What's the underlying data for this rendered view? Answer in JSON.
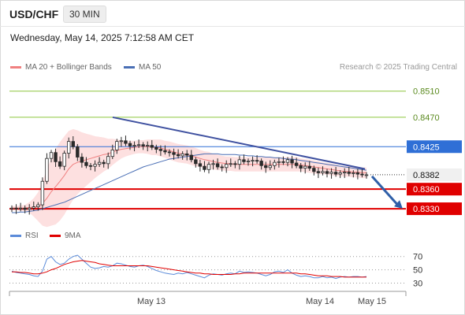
{
  "header": {
    "symbol": "USD/CHF",
    "timeframe": "30 MIN",
    "datetime": "Wednesday, May 14, 2025 7:12:58 AM CET"
  },
  "legend": {
    "ma20": "MA 20 + Bollinger Bands",
    "ma50": "MA 50",
    "credit": "Research © 2025 Trading Central"
  },
  "rsi_legend": {
    "rsi": "RSI",
    "ma9": "9MA"
  },
  "colors": {
    "green": "#8dc63f",
    "blue": "#2f6fd6",
    "red": "#e00000",
    "ma20": "#f08080",
    "ma50": "#4a6fb5",
    "band": "#fde0e0",
    "candle_up": "#2a2a2a",
    "candle_down": "#2a2a2a",
    "trend": "#3f51a0",
    "arrow": "#2f5fa8",
    "rsi": "#5b8bd9",
    "rsi_ma": "#e00000"
  },
  "chart_data": {
    "type": "candlestick",
    "x_labels": [
      "May 13",
      "May 14",
      "May 15"
    ],
    "levels": [
      {
        "value": 0.851,
        "label": "0.8510",
        "style": "green"
      },
      {
        "value": 0.847,
        "label": "0.8470",
        "style": "green"
      },
      {
        "value": 0.8425,
        "label": "0.8425",
        "style": "blue"
      },
      {
        "value": 0.8382,
        "label": "0.8382",
        "style": "current"
      },
      {
        "value": 0.836,
        "label": "0.8360",
        "style": "red"
      },
      {
        "value": 0.833,
        "label": "0.8330",
        "style": "red"
      }
    ],
    "ylim": [
      0.8312,
      0.8535
    ],
    "close_path": [
      0.8331,
      0.833,
      0.8331,
      0.8329,
      0.8331,
      0.8333,
      0.8336,
      0.8372,
      0.8407,
      0.8416,
      0.8402,
      0.8395,
      0.8415,
      0.8433,
      0.8425,
      0.8409,
      0.8401,
      0.8396,
      0.8395,
      0.8398,
      0.8401,
      0.8399,
      0.841,
      0.842,
      0.8433,
      0.8434,
      0.843,
      0.8426,
      0.8427,
      0.8428,
      0.8426,
      0.8427,
      0.8424,
      0.8421,
      0.8419,
      0.8417,
      0.8416,
      0.8413,
      0.8411,
      0.8414,
      0.8412,
      0.8405,
      0.8399,
      0.8395,
      0.839,
      0.8398,
      0.8399,
      0.8394,
      0.8393,
      0.8398,
      0.8399,
      0.8398,
      0.8405,
      0.8402,
      0.8403,
      0.8404,
      0.8403,
      0.8396,
      0.8393,
      0.8396,
      0.8401,
      0.8402,
      0.8401,
      0.8405,
      0.84,
      0.8396,
      0.8392,
      0.8395,
      0.8392,
      0.8387,
      0.8385,
      0.8387,
      0.8384,
      0.8386,
      0.8383,
      0.8385,
      0.8386,
      0.8384,
      0.8385,
      0.8383,
      0.8382,
      0.8382
    ],
    "ma20": [
      0.8331,
      0.8331,
      0.8331,
      0.8331,
      0.8332,
      0.8332,
      0.8333,
      0.8338,
      0.8346,
      0.8356,
      0.8364,
      0.8372,
      0.8381,
      0.8391,
      0.8398,
      0.8401,
      0.8403,
      0.8405,
      0.8407,
      0.8409,
      0.8411,
      0.8413,
      0.8414,
      0.8417,
      0.8419,
      0.8421,
      0.8422,
      0.8423,
      0.8424,
      0.8425,
      0.8425,
      0.8425,
      0.8424,
      0.8424,
      0.8423,
      0.8421,
      0.8419,
      0.8417,
      0.8415,
      0.8414,
      0.8413,
      0.8411,
      0.8409,
      0.8407,
      0.8405,
      0.8404,
      0.8402,
      0.8401,
      0.84,
      0.8399,
      0.8399,
      0.8398,
      0.8398,
      0.8398,
      0.8398,
      0.8398,
      0.8398,
      0.8398,
      0.8398,
      0.8398,
      0.8398,
      0.8398,
      0.8398,
      0.8398,
      0.8398,
      0.8398,
      0.8397,
      0.8396,
      0.8395,
      0.8394,
      0.8393,
      0.8392,
      0.8391,
      0.839,
      0.8389,
      0.8388,
      0.8387,
      0.8387,
      0.8386,
      0.8386,
      0.8385,
      0.8385
    ],
    "ma50": [
      0.8324,
      0.8324,
      0.8325,
      0.8325,
      0.8326,
      0.8327,
      0.8328,
      0.833,
      0.8332,
      0.8334,
      0.8336,
      0.8338,
      0.834,
      0.8343,
      0.8346,
      0.8349,
      0.8352,
      0.8355,
      0.8358,
      0.8361,
      0.8364,
      0.8367,
      0.837,
      0.8373,
      0.8376,
      0.8379,
      0.8382,
      0.8385,
      0.8388,
      0.8391,
      0.8394,
      0.8396,
      0.8398,
      0.84,
      0.8402,
      0.8404,
      0.8406,
      0.8407,
      0.8408,
      0.8409,
      0.841,
      0.8411,
      0.8412,
      0.8413,
      0.8414,
      0.8414,
      0.8414,
      0.8414,
      0.8413,
      0.8413,
      0.8413,
      0.8413,
      0.8412,
      0.8412,
      0.8411,
      0.8411,
      0.841,
      0.841,
      0.8409,
      0.8409,
      0.8408,
      0.8408,
      0.8407,
      0.8406,
      0.8406,
      0.8405,
      0.8404,
      0.8403,
      0.8402,
      0.8401,
      0.84,
      0.8399,
      0.8398,
      0.8397,
      0.8396,
      0.8395,
      0.8394,
      0.8393,
      0.8392,
      0.8391,
      0.839,
      0.8389
    ],
    "band_width": [
      0.0003,
      0.0003,
      0.0004,
      0.0005,
      0.0008,
      0.0014,
      0.0022,
      0.0034,
      0.0044,
      0.0052,
      0.0058,
      0.006,
      0.006,
      0.0058,
      0.0054,
      0.0049,
      0.0044,
      0.004,
      0.0036,
      0.0032,
      0.0029,
      0.0026,
      0.0023,
      0.002,
      0.0017,
      0.0014,
      0.0012,
      0.0011,
      0.001,
      0.001,
      0.001,
      0.0011,
      0.0012,
      0.0012,
      0.0013,
      0.0013,
      0.0014,
      0.0014,
      0.0014,
      0.0014,
      0.0014,
      0.0014,
      0.0014,
      0.0013,
      0.0013,
      0.0013,
      0.0012,
      0.0012,
      0.0011,
      0.0011,
      0.0011,
      0.0011,
      0.0011,
      0.0011,
      0.0011,
      0.0011,
      0.0011,
      0.0011,
      0.0011,
      0.0011,
      0.0011,
      0.0011,
      0.0011,
      0.0011,
      0.0011,
      0.0011,
      0.001,
      0.001,
      0.001,
      0.001,
      0.001,
      0.0009,
      0.0009,
      0.0009,
      0.0009,
      0.0008,
      0.0008,
      0.0008,
      0.0008,
      0.0008,
      0.0008,
      0.0008
    ],
    "trendline": {
      "from": [
        0.847,
        0.8391
      ],
      "note": "descending resistance"
    },
    "rsi": {
      "levels": [
        70,
        50,
        30
      ],
      "ylim": [
        20,
        85
      ],
      "rsi": [
        48,
        46,
        45,
        44,
        43,
        41,
        40,
        48,
        66,
        70,
        62,
        58,
        60,
        66,
        70,
        72,
        66,
        60,
        54,
        52,
        53,
        55,
        54,
        56,
        60,
        59,
        57,
        55,
        54,
        56,
        57,
        55,
        52,
        49,
        47,
        45,
        44,
        43,
        45,
        44,
        46,
        44,
        42,
        40,
        38,
        42,
        44,
        43,
        42,
        44,
        45,
        44,
        48,
        46,
        47,
        46,
        45,
        43,
        41,
        43,
        47,
        48,
        46,
        50,
        45,
        42,
        40,
        41,
        40,
        38,
        38,
        40,
        38,
        39,
        37,
        39,
        40,
        39,
        40,
        40,
        39,
        40
      ],
      "ma9": [
        47,
        47,
        46,
        46,
        45,
        44,
        44,
        45,
        47,
        50,
        52,
        55,
        58,
        60,
        62,
        63,
        64,
        63,
        62,
        61,
        59,
        58,
        57,
        56,
        56,
        56,
        56,
        56,
        56,
        56,
        56,
        56,
        55,
        54,
        53,
        52,
        51,
        50,
        49,
        48,
        47,
        46,
        45,
        45,
        44,
        44,
        43,
        43,
        43,
        43,
        43,
        44,
        44,
        45,
        45,
        45,
        45,
        45,
        45,
        45,
        45,
        45,
        45,
        45,
        45,
        45,
        44,
        44,
        43,
        42,
        41,
        41,
        41,
        40,
        40,
        40,
        39,
        39,
        39,
        39,
        39,
        39
      ]
    }
  }
}
